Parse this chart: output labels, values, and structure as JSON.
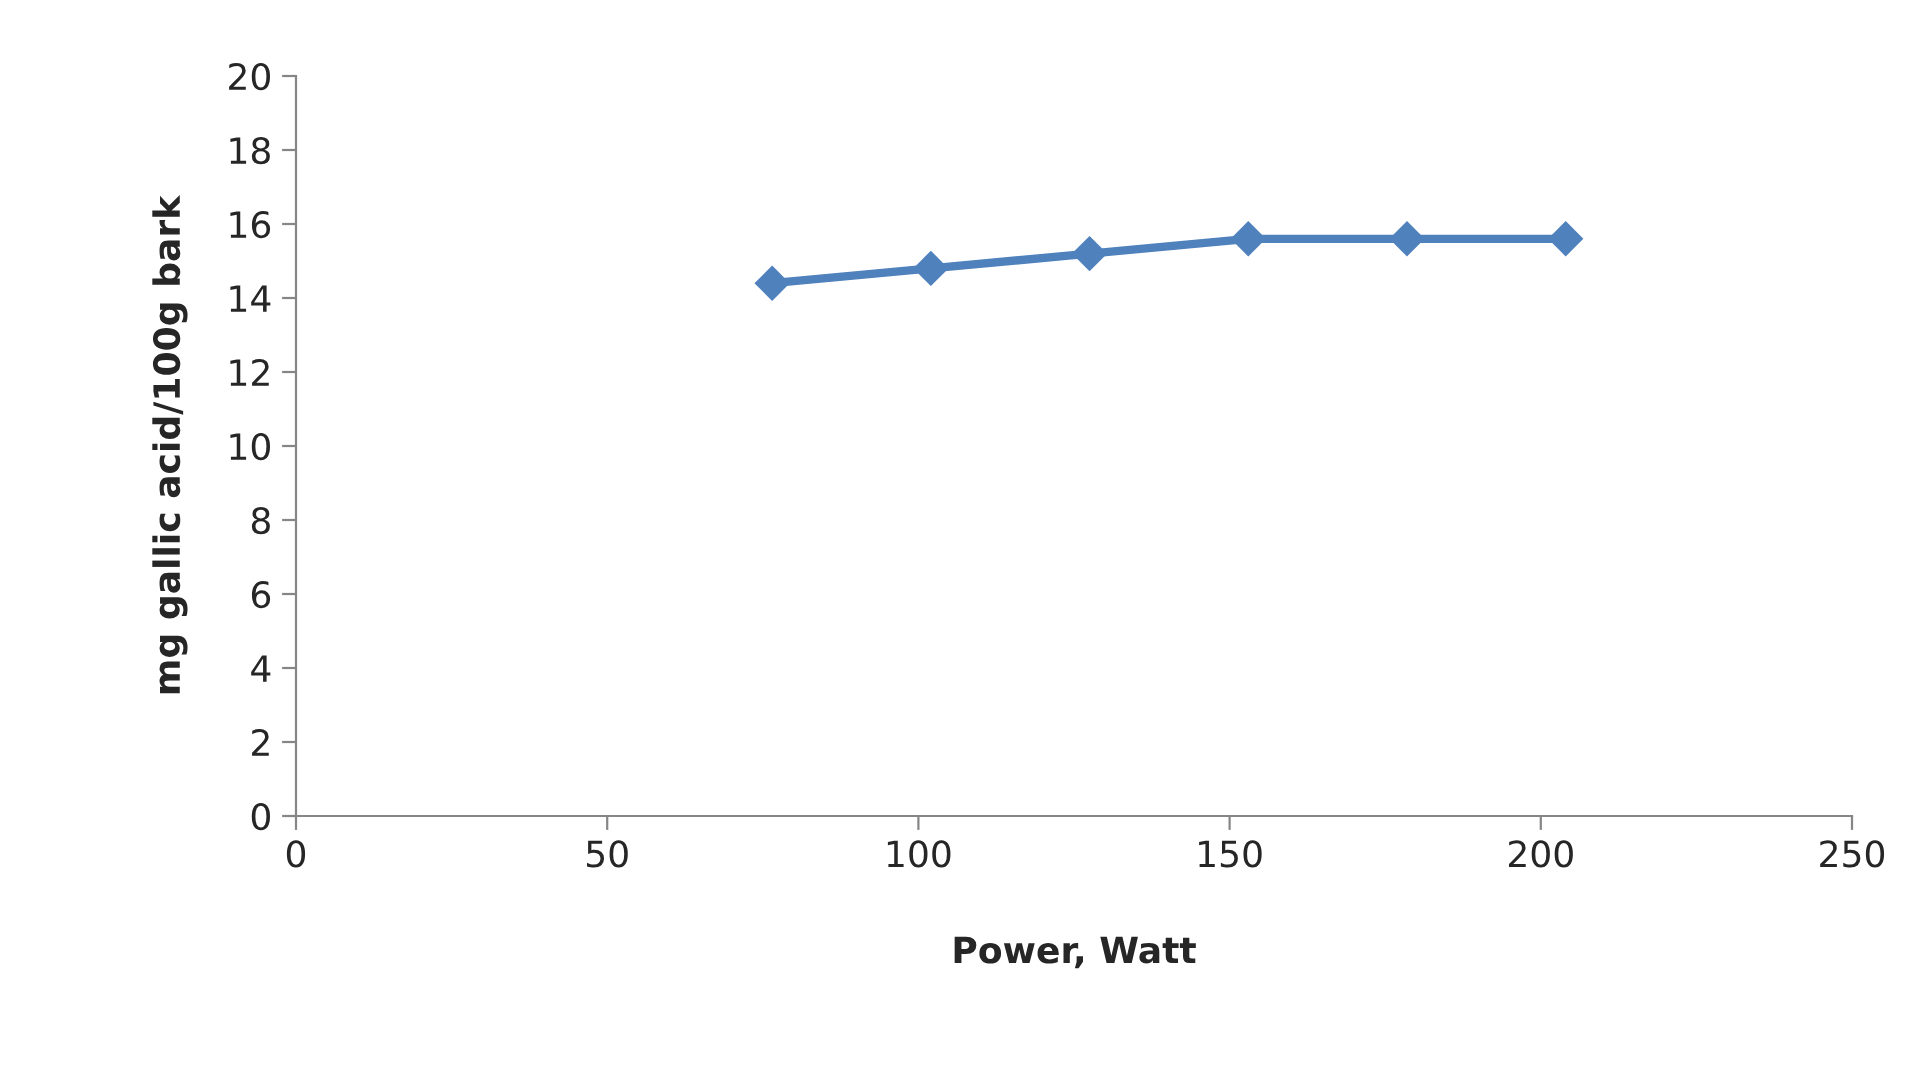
{
  "chart_data": {
    "type": "line",
    "xlabel": "Power, Watt",
    "ylabel": "mg gallic acid/100g bark",
    "x": [
      76.5,
      102,
      127.5,
      153,
      178.5,
      204
    ],
    "series": [
      {
        "color": "#4f81bd",
        "values": [
          14.4,
          14.8,
          15.2,
          15.6,
          15.6,
          15.6
        ]
      }
    ],
    "xlim": [
      0,
      250
    ],
    "xticks": [
      0,
      50,
      100,
      150,
      200,
      250
    ],
    "ylim": [
      0,
      20
    ],
    "yticks": [
      0,
      2,
      4,
      6,
      8,
      10,
      12,
      14,
      16,
      18,
      20
    ],
    "grid": false,
    "marker": "diamond",
    "line_style": "solid"
  }
}
